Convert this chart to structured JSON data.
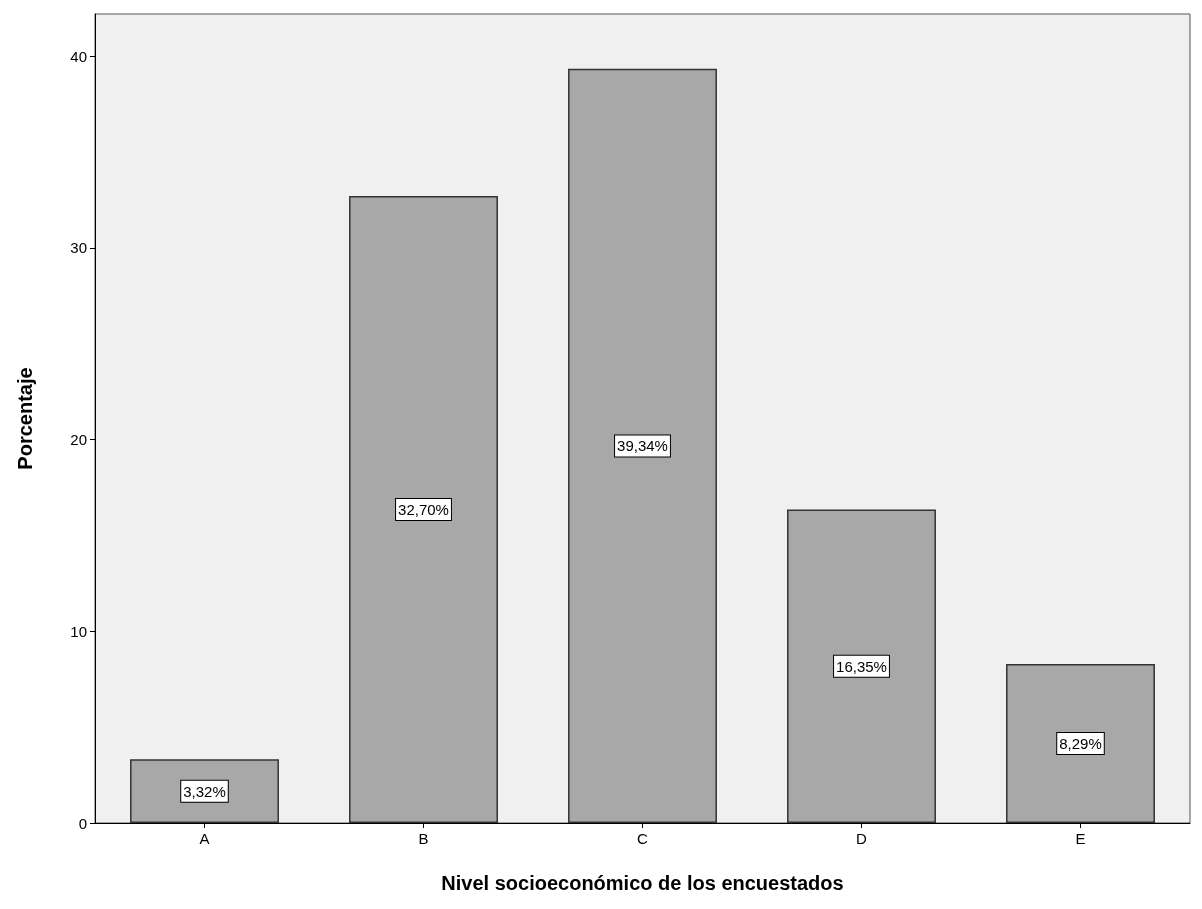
{
  "chart_data": {
    "type": "bar",
    "xlabel": "Nivel socioeconómico de los encuestados",
    "ylabel": "Porcentaje",
    "categories": [
      "A",
      "B",
      "C",
      "D",
      "E"
    ],
    "values": [
      3.32,
      32.7,
      39.34,
      16.35,
      8.29
    ],
    "value_labels": [
      "3,32%",
      "32,70%",
      "39,34%",
      "16,35%",
      "8,29%"
    ],
    "color": "#a8a8a8",
    "ylim": [
      0,
      42.2
    ],
    "yticks": [
      0,
      10,
      20,
      30,
      40
    ],
    "grid": false
  }
}
